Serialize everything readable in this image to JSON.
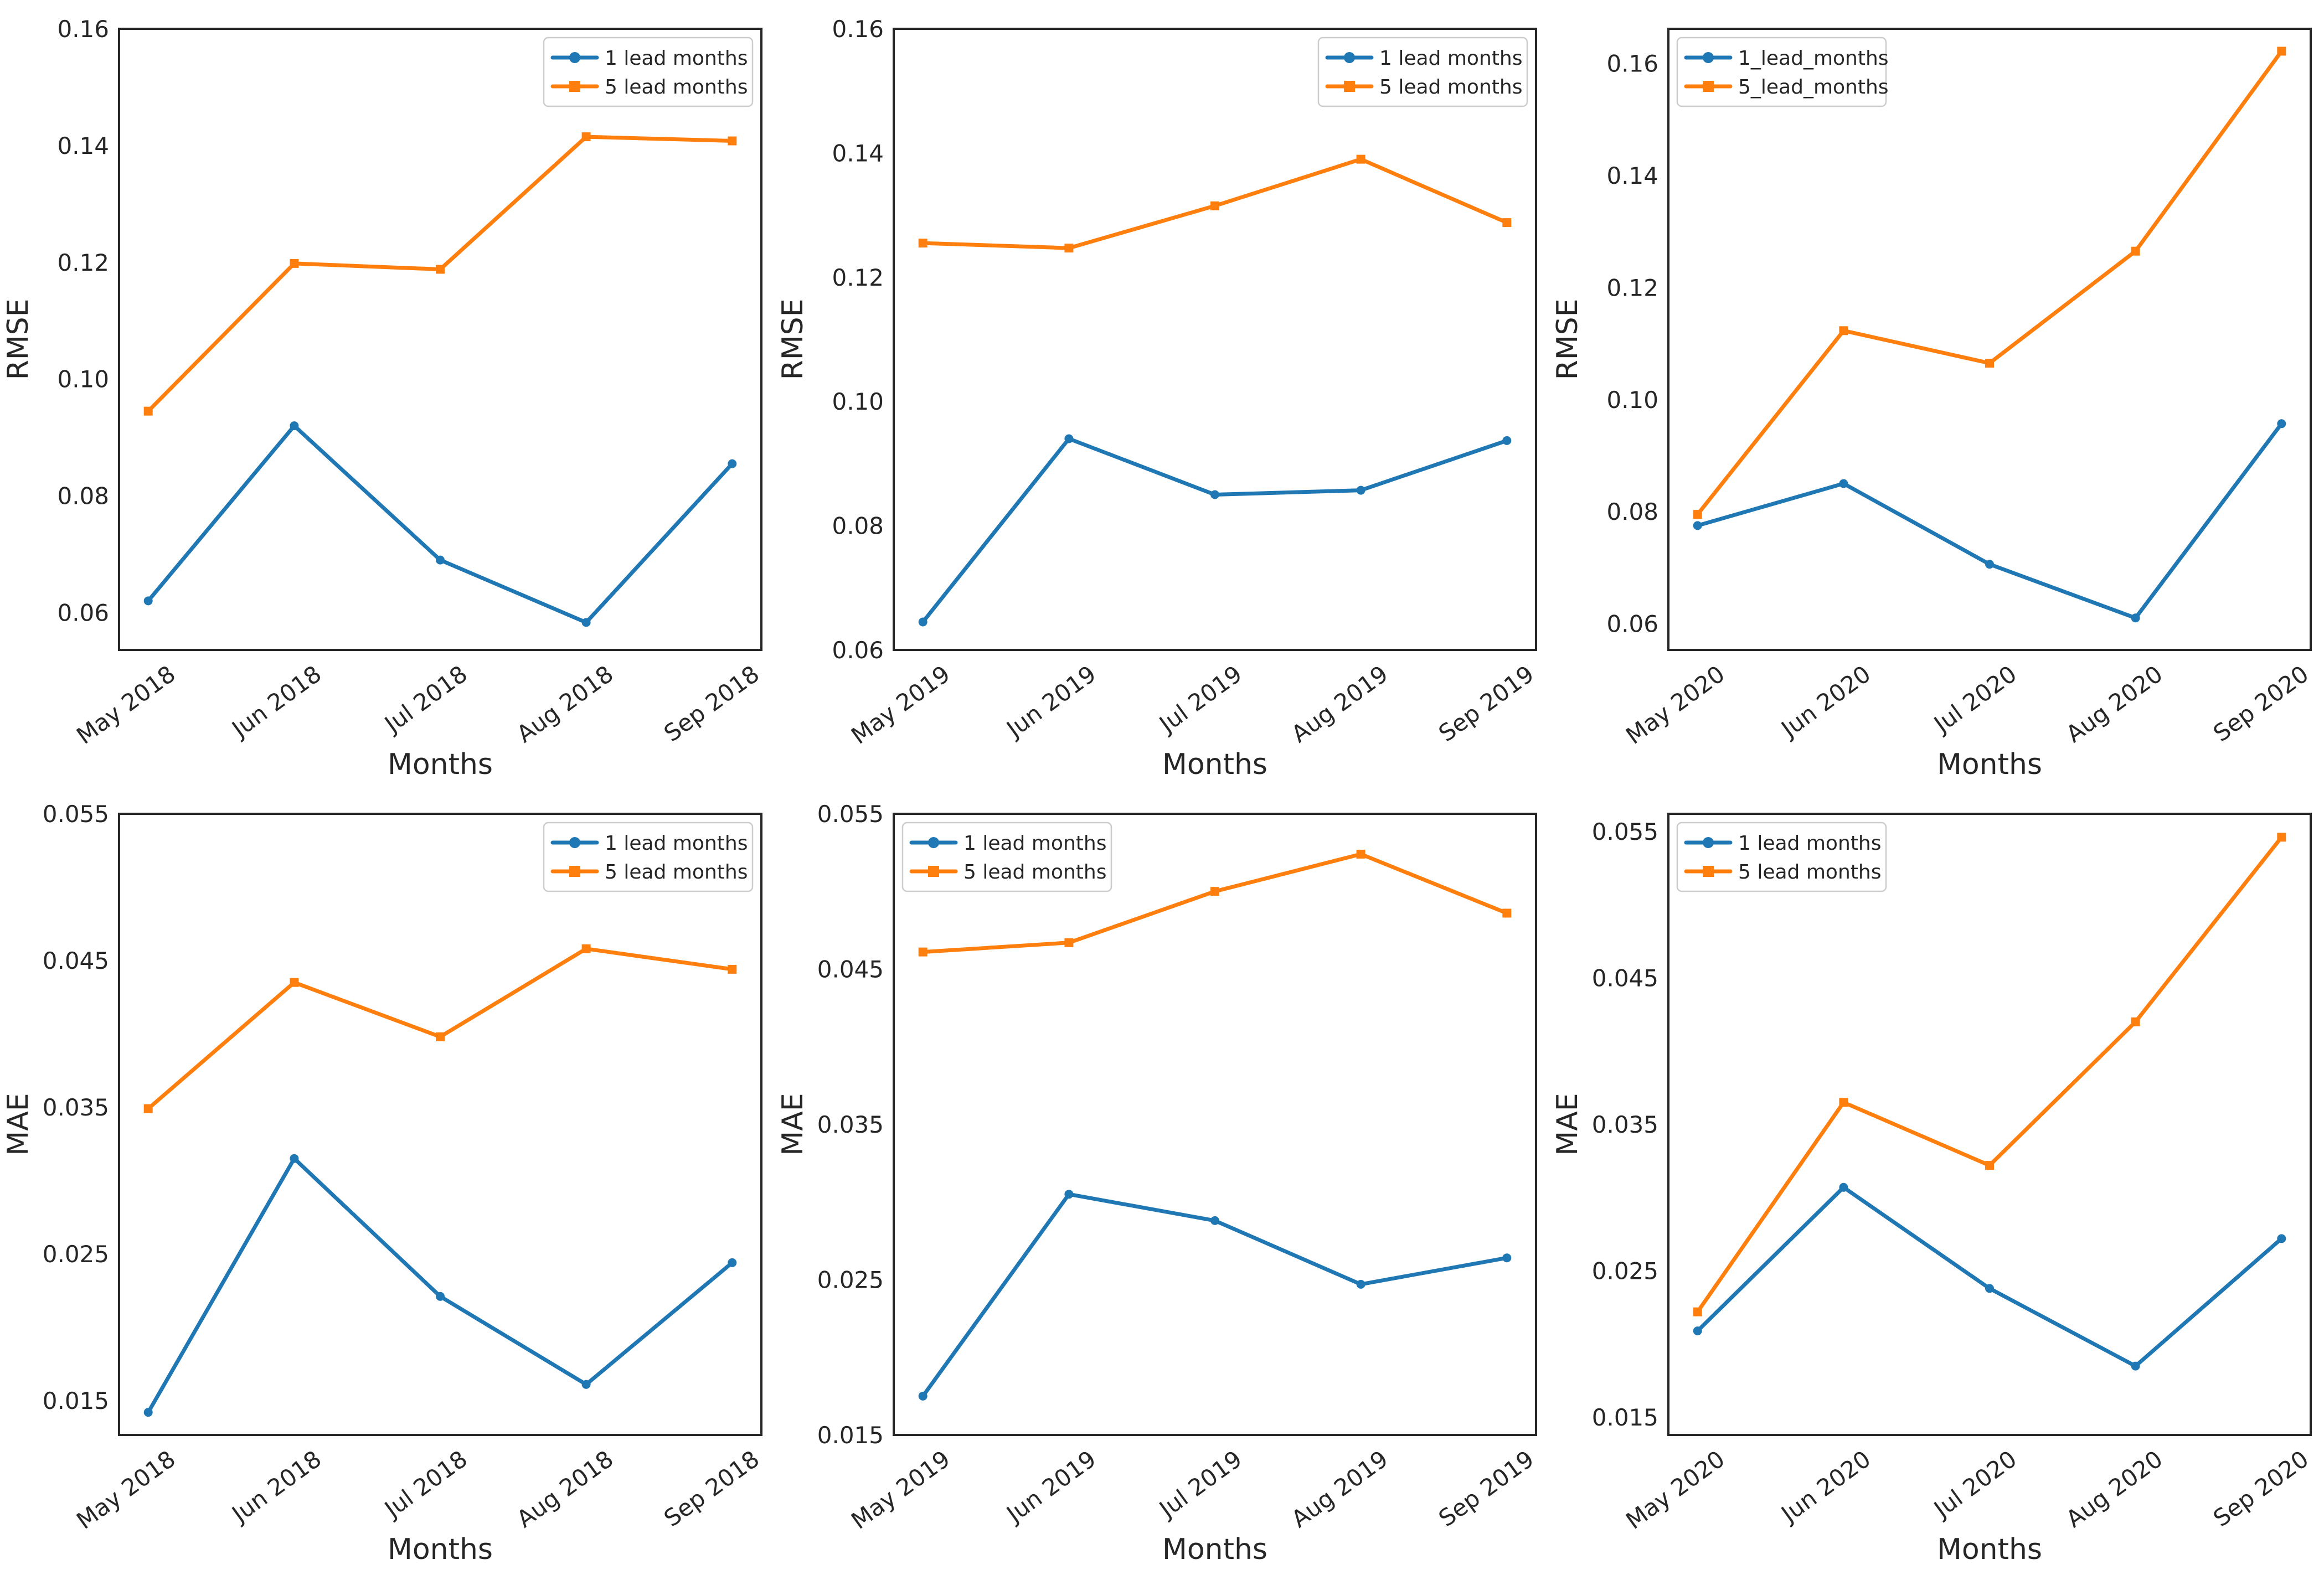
{
  "figure": {
    "layout": "2 rows x 3 columns of line plots",
    "background": "#ffffff"
  },
  "colors": {
    "series1": "#1f77b4",
    "series2": "#ff7f0e",
    "spine": "#262626",
    "text": "#262626",
    "legend_border": "#cccccc",
    "legend_background": "#ffffff"
  },
  "chart_data": [
    {
      "type": "line",
      "title": "",
      "ylabel": "RMSE",
      "xlabel": "Months",
      "categories": [
        "May 2018",
        "Jun 2018",
        "Jul 2018",
        "Aug 2018",
        "Sep 2018"
      ],
      "ytick_labels": [
        "0.06",
        "0.08",
        "0.10",
        "0.12",
        "0.14",
        "0.16"
      ],
      "ylim": [
        0.0536,
        0.16
      ],
      "grid": false,
      "legend": {
        "position": "upper right"
      },
      "series": [
        {
          "name": "1 lead months",
          "marker": "circle",
          "color": "#1f77b4",
          "values": [
            0.062,
            0.092,
            0.069,
            0.0583,
            0.0855
          ]
        },
        {
          "name": "5 lead months",
          "marker": "square",
          "color": "#ff7f0e",
          "values": [
            0.0945,
            0.1198,
            0.1188,
            0.1415,
            0.1408
          ]
        }
      ]
    },
    {
      "type": "line",
      "title": "",
      "ylabel": "RMSE",
      "xlabel": "Months",
      "categories": [
        "May 2019",
        "Jun 2019",
        "Jul 2019",
        "Aug 2019",
        "Sep 2019"
      ],
      "ytick_labels": [
        "0.06",
        "0.08",
        "0.10",
        "0.12",
        "0.14",
        "0.16"
      ],
      "ylim": [
        0.06,
        0.16
      ],
      "grid": false,
      "legend": {
        "position": "upper right"
      },
      "series": [
        {
          "name": "1 lead months",
          "marker": "circle",
          "color": "#1f77b4",
          "values": [
            0.0645,
            0.094,
            0.085,
            0.0857,
            0.0937
          ]
        },
        {
          "name": "5 lead months",
          "marker": "square",
          "color": "#ff7f0e",
          "values": [
            0.1255,
            0.1247,
            0.1315,
            0.139,
            0.1288
          ]
        }
      ]
    },
    {
      "type": "line",
      "title": "",
      "ylabel": "RMSE",
      "xlabel": "Months",
      "categories": [
        "May 2020",
        "Jun 2020",
        "Jul 2020",
        "Aug 2020",
        "Sep 2020"
      ],
      "ytick_labels": [
        "0.06",
        "0.08",
        "0.10",
        "0.12",
        "0.14",
        "0.16"
      ],
      "ylim": [
        0.0553,
        0.1662
      ],
      "grid": false,
      "legend": {
        "position": "upper left"
      },
      "series": [
        {
          "name": "1_lead_months",
          "marker": "circle",
          "color": "#1f77b4",
          "values": [
            0.0775,
            0.085,
            0.0706,
            0.061,
            0.0957
          ]
        },
        {
          "name": "5_lead_months",
          "marker": "square",
          "color": "#ff7f0e",
          "values": [
            0.0795,
            0.1123,
            0.1065,
            0.1265,
            0.1622
          ]
        }
      ]
    },
    {
      "type": "line",
      "title": "",
      "ylabel": "MAE",
      "xlabel": "Months",
      "categories": [
        "May 2018",
        "Jun 2018",
        "Jul 2018",
        "Aug 2018",
        "Sep 2018"
      ],
      "ytick_labels": [
        "0.015",
        "0.025",
        "0.035",
        "0.045",
        "0.055"
      ],
      "ylim": [
        0.01266,
        0.055
      ],
      "grid": false,
      "legend": {
        "position": "upper right"
      },
      "series": [
        {
          "name": "1 lead months",
          "marker": "circle",
          "color": "#1f77b4",
          "values": [
            0.0142,
            0.0315,
            0.0221,
            0.0161,
            0.0244
          ]
        },
        {
          "name": "5 lead months",
          "marker": "square",
          "color": "#ff7f0e",
          "values": [
            0.0349,
            0.0435,
            0.0398,
            0.0458,
            0.0444
          ]
        }
      ]
    },
    {
      "type": "line",
      "title": "",
      "ylabel": "MAE",
      "xlabel": "Months",
      "categories": [
        "May 2019",
        "Jun 2019",
        "Jul 2019",
        "Aug 2019",
        "Sep 2019"
      ],
      "ytick_labels": [
        "0.015",
        "0.025",
        "0.035",
        "0.045",
        "0.055"
      ],
      "ylim": [
        0.015,
        0.055
      ],
      "grid": false,
      "legend": {
        "position": "upper left"
      },
      "series": [
        {
          "name": "1 lead months",
          "marker": "circle",
          "color": "#1f77b4",
          "values": [
            0.0175,
            0.0305,
            0.0288,
            0.0247,
            0.0264
          ]
        },
        {
          "name": "5 lead months",
          "marker": "square",
          "color": "#ff7f0e",
          "values": [
            0.0461,
            0.0467,
            0.05,
            0.0524,
            0.0486
          ]
        }
      ]
    },
    {
      "type": "line",
      "title": "",
      "ylabel": "MAE",
      "xlabel": "Months",
      "categories": [
        "May 2020",
        "Jun 2020",
        "Jul 2020",
        "Aug 2020",
        "Sep 2020"
      ],
      "ytick_labels": [
        "0.015",
        "0.025",
        "0.035",
        "0.045",
        "0.055"
      ],
      "ylim": [
        0.0138,
        0.0562
      ],
      "grid": false,
      "legend": {
        "position": "upper left"
      },
      "series": [
        {
          "name": "1 lead months",
          "marker": "circle",
          "color": "#1f77b4",
          "values": [
            0.0209,
            0.0307,
            0.0238,
            0.0185,
            0.0272
          ]
        },
        {
          "name": "5 lead months",
          "marker": "square",
          "color": "#ff7f0e",
          "values": [
            0.0222,
            0.0365,
            0.0322,
            0.042,
            0.0546
          ]
        }
      ]
    }
  ]
}
